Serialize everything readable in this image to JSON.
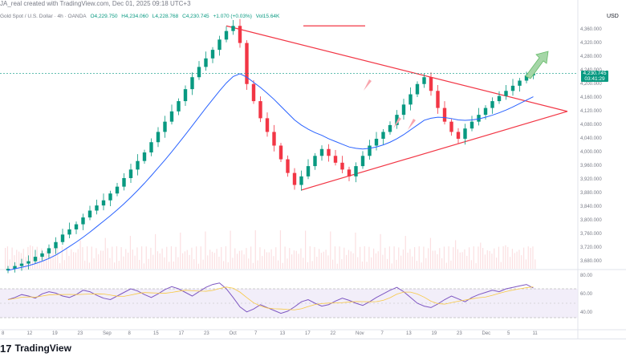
{
  "header": {
    "caption": "JA_real created with TradingView.com, Dec 01, 2025 09:18 UTC+3",
    "symbol": "Gold Spot / U.S. Dollar · 4h · OANDA",
    "ohlc": [
      "O4,229.750",
      "H4,234.060",
      "L4,228.768",
      "C4,230.745",
      "+1.070 (+0.03%)",
      "Vol15.64K"
    ]
  },
  "price_axis": {
    "currency": "USD",
    "ticks": [
      "4,360.000",
      "4,320.000",
      "4,280.000",
      "4,240.000",
      "4,200.000",
      "4,160.000",
      "4,120.000",
      "4,080.000",
      "4,040.000",
      "4,000.000",
      "3,960.000",
      "3,920.000",
      "3,880.000",
      "3,840.000",
      "3,800.000",
      "3,760.000",
      "3,720.000",
      "3,680.000"
    ],
    "current_price": "4,230.745",
    "countdown": "03:41:29"
  },
  "rsi_axis": {
    "ticks": [
      "80.00",
      "60.00",
      "40.00"
    ]
  },
  "time_axis": {
    "ticks": [
      "8",
      "12",
      "19",
      "23",
      "Sep",
      "8",
      "15",
      "17",
      "23",
      "Oct",
      "7",
      "13",
      "17",
      "22",
      "Nov",
      "7",
      "13",
      "19",
      "23",
      "Dec",
      "5",
      "11"
    ]
  },
  "brand": {
    "name": "TradingView",
    "logo": "17"
  },
  "colors": {
    "up": "#089981",
    "down": "#f23645",
    "ma": "#2962ff",
    "triangle": "#f23645",
    "rsi": "#7e57c2",
    "arrow": "#a5d6a7"
  },
  "chart_data": {
    "type": "candlestick",
    "symbol": "XAUUSD",
    "timeframe": "4h",
    "ylim": [
      3660,
      4380
    ],
    "series": [
      {
        "values": [
          3660,
          3668,
          3675,
          3682,
          3695,
          3705,
          3720,
          3738,
          3760,
          3775,
          3790,
          3810,
          3830,
          3845,
          3860,
          3880,
          3900,
          3925,
          3950,
          3975,
          4000,
          4030,
          4060,
          4090,
          4120,
          4150,
          4185,
          4220,
          4250,
          4275,
          4300,
          4330,
          4355,
          4370,
          4320,
          4200,
          4150,
          4100,
          4060,
          4020,
          3980,
          3940,
          3905,
          3930,
          3960,
          3990,
          4010,
          3990,
          3970,
          3950,
          3930,
          3960,
          3990,
          4020,
          4040,
          4060,
          4080,
          4110,
          4140,
          4170,
          4200,
          4220,
          4180,
          4130,
          4090,
          4060,
          4040,
          4070,
          4090,
          4110,
          4130,
          4150,
          4165,
          4180,
          4195,
          4210,
          4225,
          4231
        ]
      }
    ],
    "ma_values": [
      3655,
      3660,
      3664,
      3669,
      3675,
      3682,
      3690,
      3700,
      3712,
      3725,
      3738,
      3752,
      3767,
      3783,
      3799,
      3815,
      3832,
      3850,
      3869,
      3889,
      3910,
      3932,
      3955,
      3978,
      4002,
      4027,
      4052,
      4078,
      4104,
      4130,
      4155,
      4180,
      4203,
      4222,
      4230,
      4220,
      4205,
      4190,
      4173,
      4155,
      4135,
      4115,
      4095,
      4080,
      4068,
      4058,
      4050,
      4040,
      4032,
      4024,
      4016,
      4012,
      4010,
      4012,
      4016,
      4022,
      4030,
      4040,
      4052,
      4066,
      4080,
      4094,
      4100,
      4103,
      4102,
      4099,
      4095,
      4094,
      4095,
      4098,
      4103,
      4109,
      4116,
      4124,
      4133,
      4143,
      4153,
      4163
    ],
    "triangle": {
      "top": 4370,
      "apex": 4120,
      "bottom": 3890
    },
    "rsi": {
      "ylim": [
        20,
        90
      ],
      "upper": 70,
      "lower": 30,
      "values": [
        55,
        58,
        62,
        60,
        57,
        63,
        66,
        64,
        60,
        58,
        62,
        68,
        66,
        61,
        57,
        55,
        60,
        65,
        70,
        67,
        62,
        58,
        63,
        69,
        73,
        70,
        65,
        60,
        66,
        72,
        76,
        78,
        70,
        58,
        45,
        38,
        42,
        48,
        44,
        40,
        36,
        39,
        45,
        52,
        55,
        50,
        46,
        48,
        53,
        57,
        54,
        50,
        47,
        52,
        58,
        63,
        68,
        72,
        66,
        58,
        50,
        46,
        44,
        49,
        55,
        60,
        56,
        52,
        58,
        62,
        65,
        68,
        66,
        70,
        72,
        74,
        76,
        71
      ]
    }
  }
}
